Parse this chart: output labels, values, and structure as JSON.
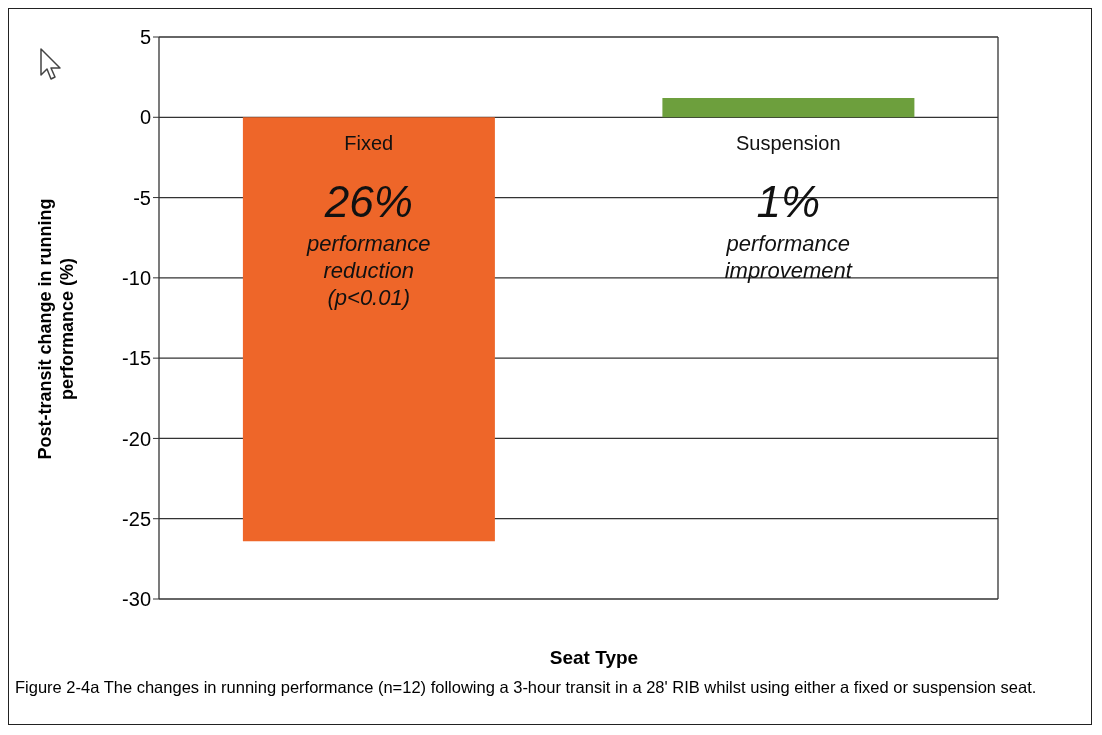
{
  "chart_data": {
    "type": "bar",
    "categories": [
      "Fixed",
      "Suspension"
    ],
    "values": [
      -26.4,
      1.2
    ],
    "colors": [
      "#ee6629",
      "#6d9f3d"
    ],
    "ylim": [
      -30,
      5
    ],
    "yticks": [
      -30,
      -25,
      -20,
      -15,
      -10,
      -5,
      0,
      5
    ],
    "grid": "y",
    "tick_labels": "y",
    "ylabel": "Post-transit change in running performance (%)",
    "xlabel": "Seat Type",
    "annotations": [
      "26%\nperformance\nreduction\n(p<0.01)",
      "1%\nperformance\nimprovement",
      "Figure 2-4a The changes in running performance (n=12) following a 3-hour transit in a 28' RIB whilst using either a fixed or suspension seat."
    ]
  }
}
